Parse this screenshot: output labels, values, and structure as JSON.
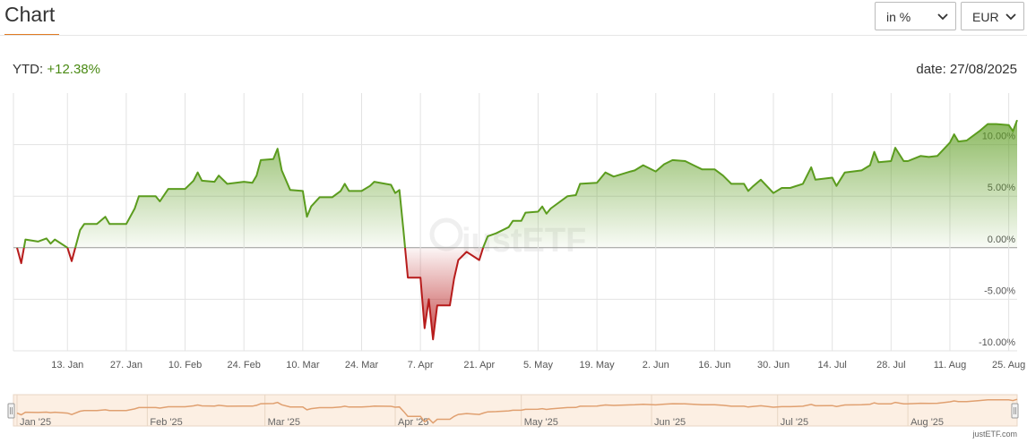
{
  "header": {
    "title": "Chart",
    "unit_select": "in %",
    "currency_select": "EUR"
  },
  "summary": {
    "ytd_label": "YTD:",
    "ytd_value": "+12.38%",
    "date_label": "date:",
    "date": "27/08/2025"
  },
  "chart_data": {
    "type": "area",
    "watermark": "justETF",
    "color": "#5b9c1e",
    "negative_color": "#b71c1c",
    "grid": true,
    "x": [
      "2025-01-01",
      "2025-01-02",
      "2025-01-03",
      "2025-01-06",
      "2025-01-08",
      "2025-01-09",
      "2025-01-10",
      "2025-01-13",
      "2025-01-14",
      "2025-01-16",
      "2025-01-17",
      "2025-01-20",
      "2025-01-22",
      "2025-01-23",
      "2025-01-27",
      "2025-01-29",
      "2025-01-30",
      "2025-02-03",
      "2025-02-04",
      "2025-02-06",
      "2025-02-10",
      "2025-02-12",
      "2025-02-13",
      "2025-02-14",
      "2025-02-17",
      "2025-02-18",
      "2025-02-20",
      "2025-02-24",
      "2025-02-26",
      "2025-02-27",
      "2025-02-28",
      "2025-03-03",
      "2025-03-04",
      "2025-03-05",
      "2025-03-07",
      "2025-03-10",
      "2025-03-11",
      "2025-03-12",
      "2025-03-14",
      "2025-03-17",
      "2025-03-19",
      "2025-03-20",
      "2025-03-21",
      "2025-03-24",
      "2025-03-26",
      "2025-03-27",
      "2025-03-31",
      "2025-04-01",
      "2025-04-02",
      "2025-04-03",
      "2025-04-04",
      "2025-04-07",
      "2025-04-08",
      "2025-04-09",
      "2025-04-10",
      "2025-04-11",
      "2025-04-14",
      "2025-04-15",
      "2025-04-16",
      "2025-04-17",
      "2025-04-18",
      "2025-04-21",
      "2025-04-22",
      "2025-04-23",
      "2025-04-25",
      "2025-04-28",
      "2025-04-29",
      "2025-05-01",
      "2025-05-02",
      "2025-05-05",
      "2025-05-06",
      "2025-05-07",
      "2025-05-08",
      "2025-05-12",
      "2025-05-14",
      "2025-05-15",
      "2025-05-19",
      "2025-05-21",
      "2025-05-23",
      "2025-05-27",
      "2025-05-28",
      "2025-05-30",
      "2025-06-02",
      "2025-06-04",
      "2025-06-06",
      "2025-06-09",
      "2025-06-11",
      "2025-06-13",
      "2025-06-16",
      "2025-06-18",
      "2025-06-20",
      "2025-06-23",
      "2025-06-24",
      "2025-06-25",
      "2025-06-27",
      "2025-06-30",
      "2025-07-02",
      "2025-07-04",
      "2025-07-07",
      "2025-07-09",
      "2025-07-10",
      "2025-07-14",
      "2025-07-15",
      "2025-07-17",
      "2025-07-21",
      "2025-07-23",
      "2025-07-24",
      "2025-07-25",
      "2025-07-28",
      "2025-07-29",
      "2025-07-31",
      "2025-08-01",
      "2025-08-04",
      "2025-08-06",
      "2025-08-08",
      "2025-08-11",
      "2025-08-12",
      "2025-08-13",
      "2025-08-15",
      "2025-08-18",
      "2025-08-20",
      "2025-08-22",
      "2025-08-25",
      "2025-08-26",
      "2025-08-27"
    ],
    "values": [
      0,
      -1.5,
      0.8,
      0.6,
      0.9,
      0.4,
      0.8,
      0,
      -1.3,
      1.7,
      2.3,
      2.3,
      3.0,
      2.3,
      2.3,
      3.8,
      5.0,
      5.0,
      4.5,
      5.7,
      5.7,
      6.5,
      7.3,
      6.5,
      6.4,
      7.0,
      6.2,
      6.4,
      6.3,
      7.0,
      8.5,
      8.6,
      9.6,
      7.5,
      5.6,
      5.5,
      3.0,
      4.0,
      4.9,
      4.9,
      5.5,
      6.2,
      5.5,
      5.5,
      6.0,
      6.4,
      6.1,
      5.3,
      5.6,
      1.5,
      -2.9,
      -2.9,
      -7.8,
      -5.0,
      -8.9,
      -5.6,
      -5.6,
      -3.0,
      -1.2,
      -0.8,
      -0.4,
      -1.2,
      0.1,
      1.1,
      1.4,
      2.0,
      2.6,
      2.6,
      3.4,
      3.5,
      4.0,
      3.3,
      3.8,
      5.0,
      5.1,
      6.2,
      6.3,
      7.3,
      6.9,
      7.4,
      7.5,
      8.0,
      7.4,
      8.1,
      8.5,
      8.4,
      8.0,
      7.6,
      7.6,
      7.0,
      6.2,
      6.2,
      5.5,
      5.9,
      6.6,
      5.3,
      5.8,
      5.8,
      6.2,
      7.8,
      6.6,
      6.8,
      6.0,
      7.3,
      7.5,
      8.0,
      9.3,
      8.3,
      8.4,
      9.7,
      8.4,
      8.4,
      8.9,
      8.8,
      8.9,
      10.2,
      11.0,
      10.3,
      10.4,
      11.3,
      12.0,
      12.0,
      11.9,
      11.3,
      12.38
    ],
    "xlim": [
      "2025-01-01",
      "2025-08-27"
    ],
    "xticks": [
      {
        "value": "2025-01-13",
        "label": "13. Jan"
      },
      {
        "value": "2025-01-27",
        "label": "27. Jan"
      },
      {
        "value": "2025-02-10",
        "label": "10. Feb"
      },
      {
        "value": "2025-02-24",
        "label": "24. Feb"
      },
      {
        "value": "2025-03-10",
        "label": "10. Mar"
      },
      {
        "value": "2025-03-24",
        "label": "24. Mar"
      },
      {
        "value": "2025-04-07",
        "label": "7. Apr"
      },
      {
        "value": "2025-04-21",
        "label": "21. Apr"
      },
      {
        "value": "2025-05-05",
        "label": "5. May"
      },
      {
        "value": "2025-05-19",
        "label": "19. May"
      },
      {
        "value": "2025-06-02",
        "label": "2. Jun"
      },
      {
        "value": "2025-06-16",
        "label": "16. Jun"
      },
      {
        "value": "2025-06-30",
        "label": "30. Jun"
      },
      {
        "value": "2025-07-14",
        "label": "14. Jul"
      },
      {
        "value": "2025-07-28",
        "label": "28. Jul"
      },
      {
        "value": "2025-08-11",
        "label": "11. Aug"
      },
      {
        "value": "2025-08-25",
        "label": "25. Aug"
      }
    ],
    "ylim": [
      -10,
      15
    ],
    "yticks": [
      {
        "value": -10,
        "label": "-10.00%"
      },
      {
        "value": -5,
        "label": "-5.00%"
      },
      {
        "value": 0,
        "label": "0.00%"
      },
      {
        "value": 5,
        "label": "5.00%"
      },
      {
        "value": 10,
        "label": "10.00%"
      }
    ]
  },
  "navigator": {
    "color": "#e0a070",
    "ticks": [
      {
        "value": "2025-01-01",
        "label": "Jan '25"
      },
      {
        "value": "2025-02-01",
        "label": "Feb '25"
      },
      {
        "value": "2025-03-01",
        "label": "Mar '25"
      },
      {
        "value": "2025-04-01",
        "label": "Apr '25"
      },
      {
        "value": "2025-05-01",
        "label": "May '25"
      },
      {
        "value": "2025-06-01",
        "label": "Jun '25"
      },
      {
        "value": "2025-07-01",
        "label": "Jul '25"
      },
      {
        "value": "2025-08-01",
        "label": "Aug '25"
      }
    ]
  },
  "credit": "justETF.com"
}
